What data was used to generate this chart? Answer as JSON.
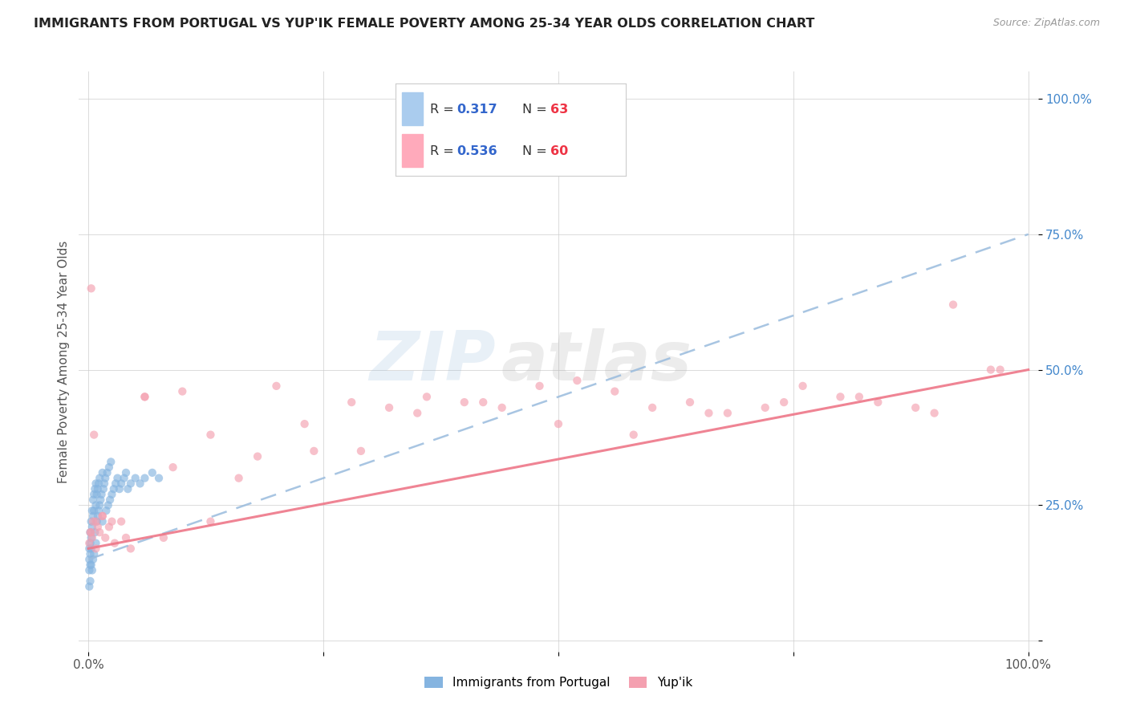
{
  "title": "IMMIGRANTS FROM PORTUGAL VS YUP'IK FEMALE POVERTY AMONG 25-34 YEAR OLDS CORRELATION CHART",
  "source": "Source: ZipAtlas.com",
  "ylabel": "Female Poverty Among 25-34 Year Olds",
  "legend_label1": "Immigrants from Portugal",
  "legend_label2": "Yup'ik",
  "r1": "0.317",
  "n1": "63",
  "r2": "0.536",
  "n2": "60",
  "color_blue": "#85B4E0",
  "color_pink": "#F4A0B0",
  "color_trend_blue": "#99BBDD",
  "color_trend_pink": "#EE7788",
  "watermark_zip": "ZIP",
  "watermark_atlas": "atlas",
  "xlim": [
    0.0,
    1.0
  ],
  "ylim": [
    0.0,
    1.05
  ],
  "trend_blue_x0": 0.0,
  "trend_blue_y0": 0.15,
  "trend_blue_x1": 1.0,
  "trend_blue_y1": 0.75,
  "trend_pink_x0": 0.0,
  "trend_pink_y0": 0.17,
  "trend_pink_x1": 1.0,
  "trend_pink_y1": 0.5,
  "port_x": [
    0.001,
    0.001,
    0.001,
    0.001,
    0.002,
    0.002,
    0.002,
    0.002,
    0.002,
    0.003,
    0.003,
    0.003,
    0.003,
    0.004,
    0.004,
    0.004,
    0.005,
    0.005,
    0.005,
    0.006,
    0.006,
    0.006,
    0.007,
    0.007,
    0.008,
    0.008,
    0.008,
    0.009,
    0.009,
    0.01,
    0.01,
    0.011,
    0.011,
    0.012,
    0.012,
    0.013,
    0.014,
    0.015,
    0.015,
    0.016,
    0.017,
    0.018,
    0.019,
    0.02,
    0.021,
    0.022,
    0.023,
    0.024,
    0.025,
    0.027,
    0.029,
    0.031,
    0.033,
    0.035,
    0.038,
    0.04,
    0.042,
    0.045,
    0.05,
    0.055,
    0.06,
    0.068,
    0.075
  ],
  "port_y": [
    0.17,
    0.15,
    0.13,
    0.1,
    0.2,
    0.18,
    0.16,
    0.14,
    0.11,
    0.22,
    0.19,
    0.17,
    0.14,
    0.24,
    0.21,
    0.13,
    0.26,
    0.23,
    0.15,
    0.27,
    0.24,
    0.16,
    0.28,
    0.2,
    0.29,
    0.25,
    0.18,
    0.27,
    0.22,
    0.28,
    0.23,
    0.29,
    0.24,
    0.3,
    0.25,
    0.26,
    0.27,
    0.31,
    0.22,
    0.28,
    0.29,
    0.3,
    0.24,
    0.31,
    0.25,
    0.32,
    0.26,
    0.33,
    0.27,
    0.28,
    0.29,
    0.3,
    0.28,
    0.29,
    0.3,
    0.31,
    0.28,
    0.29,
    0.3,
    0.29,
    0.3,
    0.31,
    0.3
  ],
  "yupik_x": [
    0.001,
    0.002,
    0.003,
    0.004,
    0.005,
    0.006,
    0.008,
    0.01,
    0.012,
    0.015,
    0.018,
    0.022,
    0.028,
    0.035,
    0.045,
    0.06,
    0.08,
    0.1,
    0.13,
    0.16,
    0.2,
    0.24,
    0.28,
    0.32,
    0.36,
    0.4,
    0.44,
    0.48,
    0.52,
    0.56,
    0.6,
    0.64,
    0.68,
    0.72,
    0.76,
    0.8,
    0.84,
    0.88,
    0.92,
    0.96,
    0.003,
    0.008,
    0.015,
    0.025,
    0.04,
    0.06,
    0.09,
    0.13,
    0.18,
    0.23,
    0.29,
    0.35,
    0.42,
    0.5,
    0.58,
    0.66,
    0.74,
    0.82,
    0.9,
    0.97
  ],
  "yupik_y": [
    0.18,
    0.2,
    0.65,
    0.19,
    0.22,
    0.38,
    0.17,
    0.21,
    0.2,
    0.23,
    0.19,
    0.21,
    0.18,
    0.22,
    0.17,
    0.45,
    0.19,
    0.46,
    0.22,
    0.3,
    0.47,
    0.35,
    0.44,
    0.43,
    0.45,
    0.44,
    0.43,
    0.47,
    0.48,
    0.46,
    0.43,
    0.44,
    0.42,
    0.43,
    0.47,
    0.45,
    0.44,
    0.43,
    0.62,
    0.5,
    0.2,
    0.22,
    0.23,
    0.22,
    0.19,
    0.45,
    0.32,
    0.38,
    0.34,
    0.4,
    0.35,
    0.42,
    0.44,
    0.4,
    0.38,
    0.42,
    0.44,
    0.45,
    0.42,
    0.5
  ]
}
